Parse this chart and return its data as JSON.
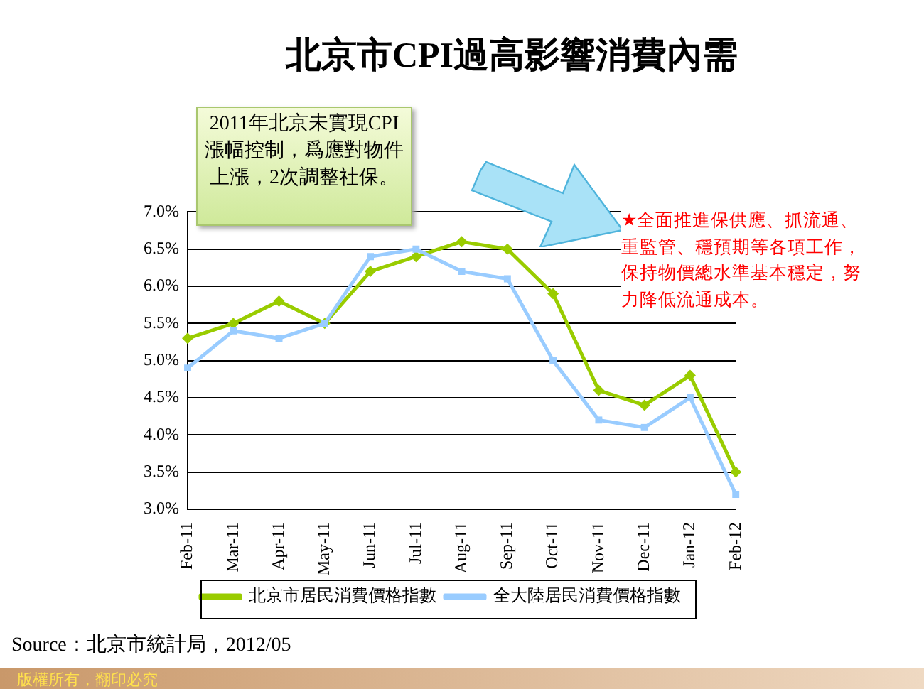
{
  "chart_data": {
    "type": "line",
    "title": "北京市CPI過高影響消費內需",
    "categories": [
      "Feb-11",
      "Mar-11",
      "Apr-11",
      "May-11",
      "Jun-11",
      "Jul-11",
      "Aug-11",
      "Sep-11",
      "Oct-11",
      "Nov-11",
      "Dec-11",
      "Jan-12",
      "Feb-12"
    ],
    "series": [
      {
        "name": "北京市居民消費價格指數",
        "color": "#99cc00",
        "marker": "diamond",
        "values": [
          5.3,
          5.5,
          5.8,
          5.5,
          6.2,
          6.4,
          6.6,
          6.5,
          5.9,
          4.6,
          4.4,
          4.8,
          3.5
        ]
      },
      {
        "name": "全大陸居民消費價格指數",
        "color": "#99ccff",
        "marker": "square",
        "values": [
          4.9,
          5.4,
          5.3,
          5.5,
          6.4,
          6.5,
          6.2,
          6.1,
          5.0,
          4.2,
          4.1,
          4.5,
          3.2
        ]
      }
    ],
    "ylim": [
      3,
      7
    ],
    "yticks": [
      {
        "value": 3,
        "label": "3.0%"
      },
      {
        "value": 3.5,
        "label": "3.5%"
      },
      {
        "value": 4,
        "label": "4.0%"
      },
      {
        "value": 4.5,
        "label": "4.5%"
      },
      {
        "value": 5,
        "label": "5.0%"
      },
      {
        "value": 5.5,
        "label": "5.5%"
      },
      {
        "value": 6,
        "label": "6.0%"
      },
      {
        "value": 6.5,
        "label": "6.5%"
      },
      {
        "value": 7,
        "label": "7.0%"
      }
    ],
    "grid": "y",
    "legend": "bottom",
    "line_style": "solid",
    "annotations": [
      "2011年北京未實現CPI漲幅控制，爲應對物件上漲，2次調整社保。",
      "★全面推進保供應、抓流通、重監管、穩預期等各項工作，保持物價總水準基本穩定，努力降低流通成本。",
      "Source：北京市統計局，2012/05",
      "版權所有，翻印必究"
    ]
  }
}
